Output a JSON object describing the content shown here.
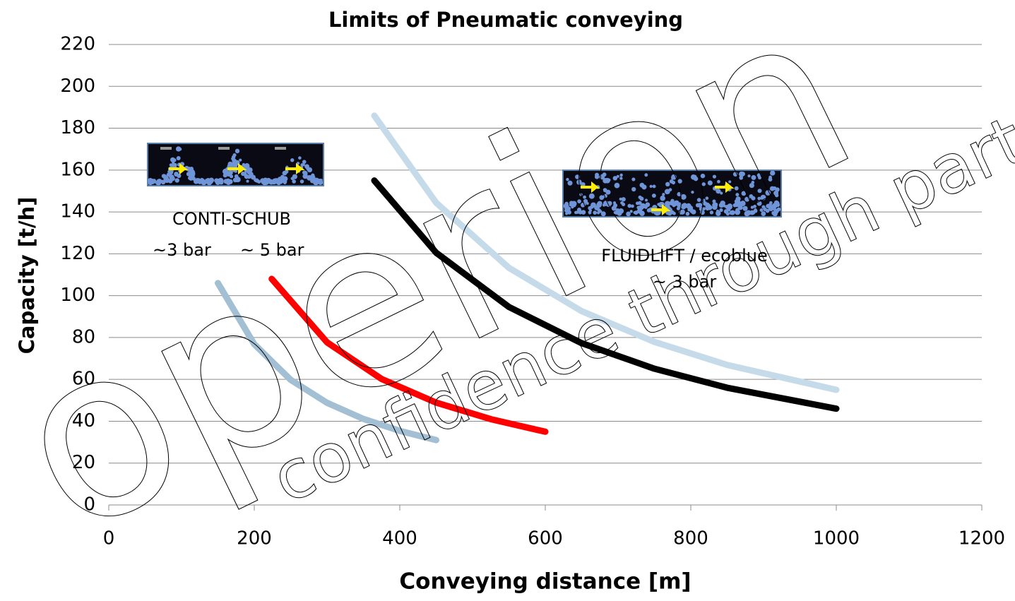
{
  "chart_data": {
    "type": "line",
    "title": "Limits of Pneumatic conveying",
    "x_label": "Conveying distance  [m]",
    "y_label": "Capacity [t/h]",
    "xlim": [
      0,
      1200
    ],
    "xticks": [
      0,
      200,
      400,
      600,
      800,
      1000,
      1200
    ],
    "ylim": [
      0,
      220
    ],
    "yticks": [
      0,
      20,
      40,
      60,
      80,
      100,
      120,
      140,
      160,
      180,
      200,
      220
    ],
    "grid": true,
    "series": [
      {
        "color": "#a3bfd3",
        "x": [
          150,
          200,
          250,
          300,
          350,
          400,
          450
        ],
        "values": [
          106,
          76.8,
          59.8,
          48.8,
          41.1,
          35.4,
          31
        ]
      },
      {
        "color": "#ff0000",
        "x": [
          224,
          300,
          375,
          450,
          525,
          600
        ],
        "values": [
          108,
          77.7,
          60.2,
          48.9,
          41.0,
          35
        ]
      },
      {
        "color": "#000000",
        "x": [
          365,
          450,
          550,
          650,
          750,
          850,
          1000
        ],
        "values": [
          155,
          120.5,
          94.6,
          77.3,
          65.1,
          56.0,
          46
        ]
      },
      {
        "color": "#c6dbe9",
        "x": [
          365,
          450,
          550,
          650,
          750,
          850,
          1000
        ],
        "values": [
          186,
          144.4,
          113.3,
          92.6,
          77.9,
          66.9,
          55
        ]
      }
    ],
    "annotations": [
      "CONTI-SCHUB",
      "~3 bar",
      "~ 5 bar",
      "FLUIDLIFT / ecoblue",
      "~ 3 bar"
    ],
    "watermark": [
      "operion",
      "confidence through part"
    ]
  }
}
